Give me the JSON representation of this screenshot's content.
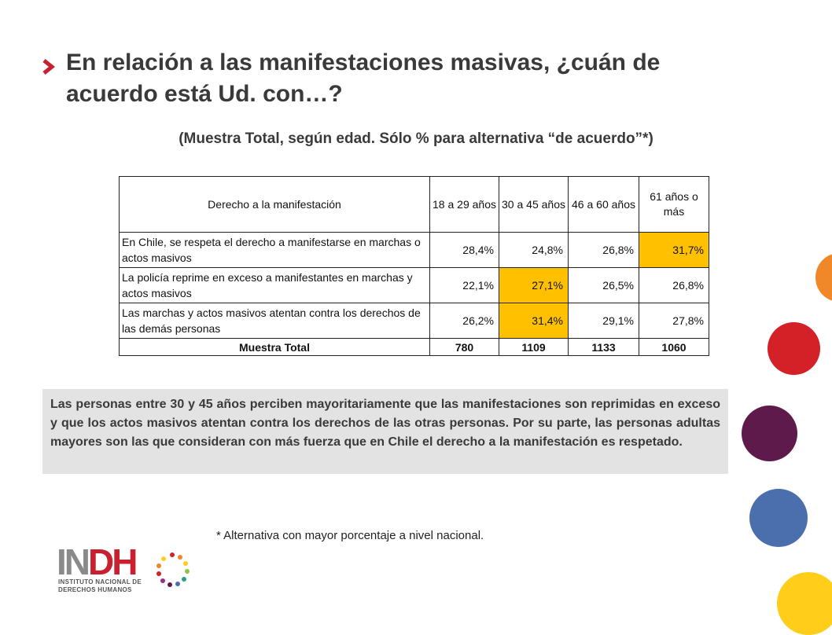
{
  "title": "En relación a las manifestaciones masivas, ¿cuán de acuerdo está Ud. con…?",
  "subtitle": "(Muestra Total, según edad. Sólo % para alternativa “de acuerdo”*)",
  "table": {
    "header": {
      "label": "Derecho a la manifestación",
      "col1": "18 a 29 años",
      "col2": "30 a 45 años",
      "col3": "46 a 60 años",
      "col4": "61 años o más"
    },
    "rows": [
      {
        "label": "En Chile, se respeta el derecho a manifestarse en marchas o actos masivos",
        "values": [
          "28,4%",
          "24,8%",
          "26,8%",
          "31,7%"
        ],
        "highlight_index": 3
      },
      {
        "label": "La policía reprime en exceso a manifestantes en marchas y actos masivos",
        "values": [
          "22,1%",
          "27,1%",
          "26,5%",
          "26,8%"
        ],
        "highlight_index": 1
      },
      {
        "label": "Las marchas y actos masivos atentan contra los derechos de las demás personas",
        "values": [
          "26,2%",
          "31,4%",
          "29,1%",
          "27,8%"
        ],
        "highlight_index": 1
      }
    ],
    "total": {
      "label": "Muestra Total",
      "values": [
        "780",
        "1109",
        "1133",
        "1060"
      ]
    },
    "highlight_color": "#ffc000"
  },
  "summary": "Las personas entre 30 y 45 años perciben mayoritariamente que las manifestaciones son reprimidas en exceso y que los actos masivos atentan contra los derechos de las otras personas. Por su parte, las personas adultas mayores son las que consideran con más fuerza que en Chile el derecho a la manifestación es respetado.",
  "footnote": "* Alternativa con mayor porcentaje a nivel nacional.",
  "logo": {
    "text_in": "IN",
    "text_dh": "DH",
    "subtitle_line1": "INSTITUTO NACIONAL DE",
    "subtitle_line2": "DERECHOS HUMANOS"
  },
  "colors": {
    "accent_red": "#c8202f",
    "orange": "#f0882a",
    "red": "#d42027",
    "purple": "#5e1a4a",
    "blue": "#4a6fac",
    "yellow": "#ffcd1a"
  }
}
